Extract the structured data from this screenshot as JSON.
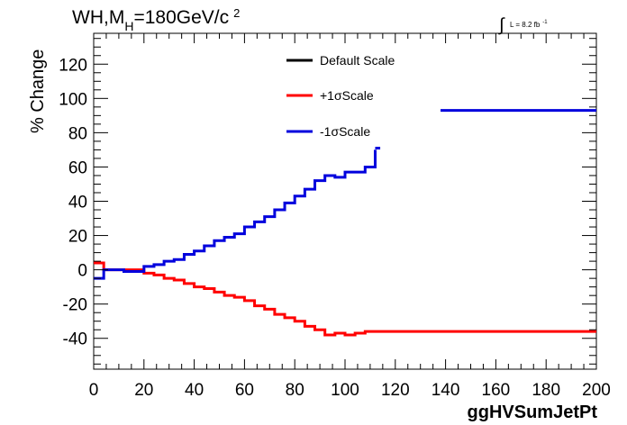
{
  "chart_data": {
    "type": "line",
    "title": {
      "main": "WH,M",
      "sub": "H",
      "value": "=180GeV/c",
      "sup": "2"
    },
    "lumi": {
      "symbol": "∫",
      "text": "L = 8.2 fb",
      "sup": "-1"
    },
    "xlabel": "ggHVSumJetPt",
    "ylabel": "% Change",
    "xlim": [
      0,
      200
    ],
    "ylim": [
      -58,
      138
    ],
    "xticks": [
      0,
      20,
      40,
      60,
      80,
      100,
      120,
      140,
      160,
      180,
      200
    ],
    "yticks": [
      -40,
      -20,
      0,
      20,
      40,
      60,
      80,
      100,
      120
    ],
    "legend": {
      "placement": "top-center",
      "entries": [
        {
          "label": "Default Scale",
          "color": "#000000"
        },
        {
          "label": "+1σScale",
          "color": "#ff0000"
        },
        {
          "label": "-1σScale",
          "color": "#0000dd"
        }
      ]
    },
    "series": [
      {
        "name": "+1σScale",
        "color": "#ff0000",
        "points": [
          [
            0,
            4
          ],
          [
            4,
            0
          ],
          [
            8,
            0
          ],
          [
            12,
            0
          ],
          [
            16,
            0
          ],
          [
            20,
            -2
          ],
          [
            24,
            -3
          ],
          [
            28,
            -5
          ],
          [
            32,
            -6
          ],
          [
            36,
            -8
          ],
          [
            40,
            -10
          ],
          [
            44,
            -11
          ],
          [
            48,
            -13
          ],
          [
            52,
            -15
          ],
          [
            56,
            -16
          ],
          [
            60,
            -18
          ],
          [
            64,
            -21
          ],
          [
            68,
            -23
          ],
          [
            72,
            -26
          ],
          [
            76,
            -28
          ],
          [
            80,
            -30
          ],
          [
            84,
            -33
          ],
          [
            88,
            -35
          ],
          [
            92,
            -38
          ],
          [
            96,
            -37
          ],
          [
            100,
            -38
          ],
          [
            104,
            -37
          ],
          [
            108,
            -36
          ],
          [
            116,
            -36
          ],
          [
            200,
            -36
          ]
        ]
      },
      {
        "name": "-1σScale",
        "color": "#0000dd",
        "points": [
          [
            0,
            -5
          ],
          [
            4,
            0
          ],
          [
            8,
            0
          ],
          [
            12,
            -1
          ],
          [
            16,
            -1
          ],
          [
            20,
            2
          ],
          [
            24,
            3
          ],
          [
            28,
            5
          ],
          [
            32,
            6
          ],
          [
            36,
            9
          ],
          [
            40,
            11
          ],
          [
            44,
            14
          ],
          [
            48,
            17
          ],
          [
            52,
            19
          ],
          [
            56,
            21
          ],
          [
            60,
            25
          ],
          [
            64,
            28
          ],
          [
            68,
            31
          ],
          [
            72,
            35
          ],
          [
            76,
            39
          ],
          [
            80,
            43
          ],
          [
            84,
            47
          ],
          [
            88,
            52
          ],
          [
            92,
            55
          ],
          [
            96,
            54
          ],
          [
            100,
            57
          ],
          [
            104,
            57
          ],
          [
            108,
            60
          ],
          [
            112,
            70
          ]
        ],
        "segments": [
          {
            "x": [
              112,
              114
            ],
            "y": 71
          },
          {
            "x": [
              138,
              200
            ],
            "y": 93
          }
        ]
      }
    ]
  }
}
